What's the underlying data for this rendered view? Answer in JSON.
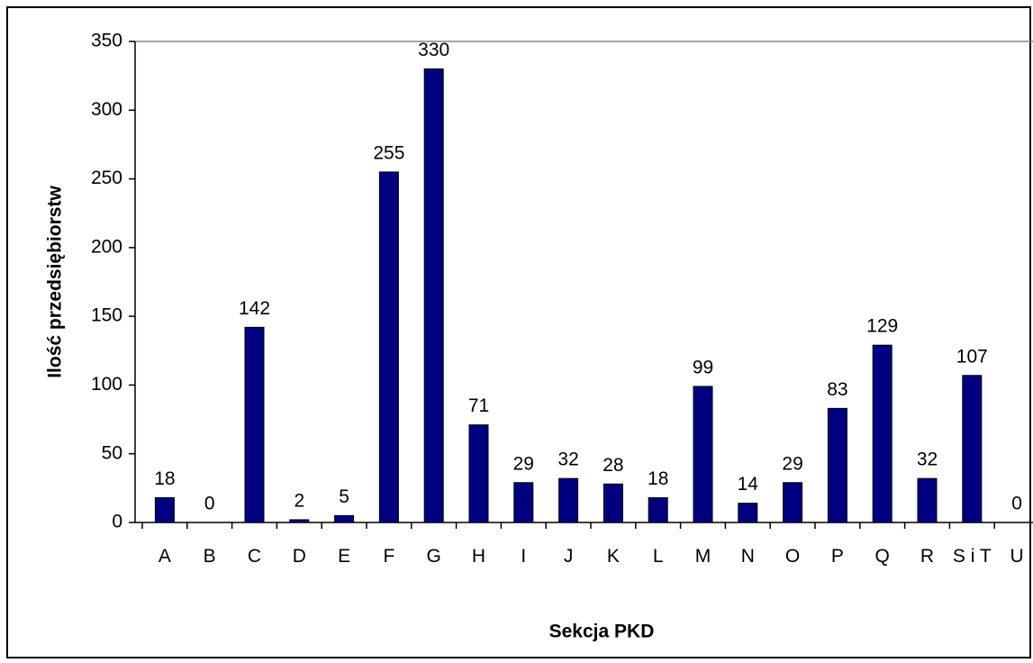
{
  "chart_data": {
    "type": "bar",
    "x_label": "Sekcja PKD",
    "y_label": "Ilość przedsiębiorstw",
    "categories": [
      "A",
      "B",
      "C",
      "D",
      "E",
      "F",
      "G",
      "H",
      "I",
      "J",
      "K",
      "L",
      "M",
      "N",
      "O",
      "P",
      "Q",
      "R",
      "S i T",
      "U"
    ],
    "values": [
      18,
      0,
      142,
      2,
      5,
      255,
      330,
      71,
      29,
      32,
      28,
      18,
      99,
      14,
      29,
      83,
      129,
      32,
      107,
      0
    ],
    "color": "#000080",
    "ylim": [
      0,
      350
    ],
    "yticks": [
      0,
      50,
      100,
      150,
      200,
      250,
      300,
      350
    ],
    "grid": false
  }
}
